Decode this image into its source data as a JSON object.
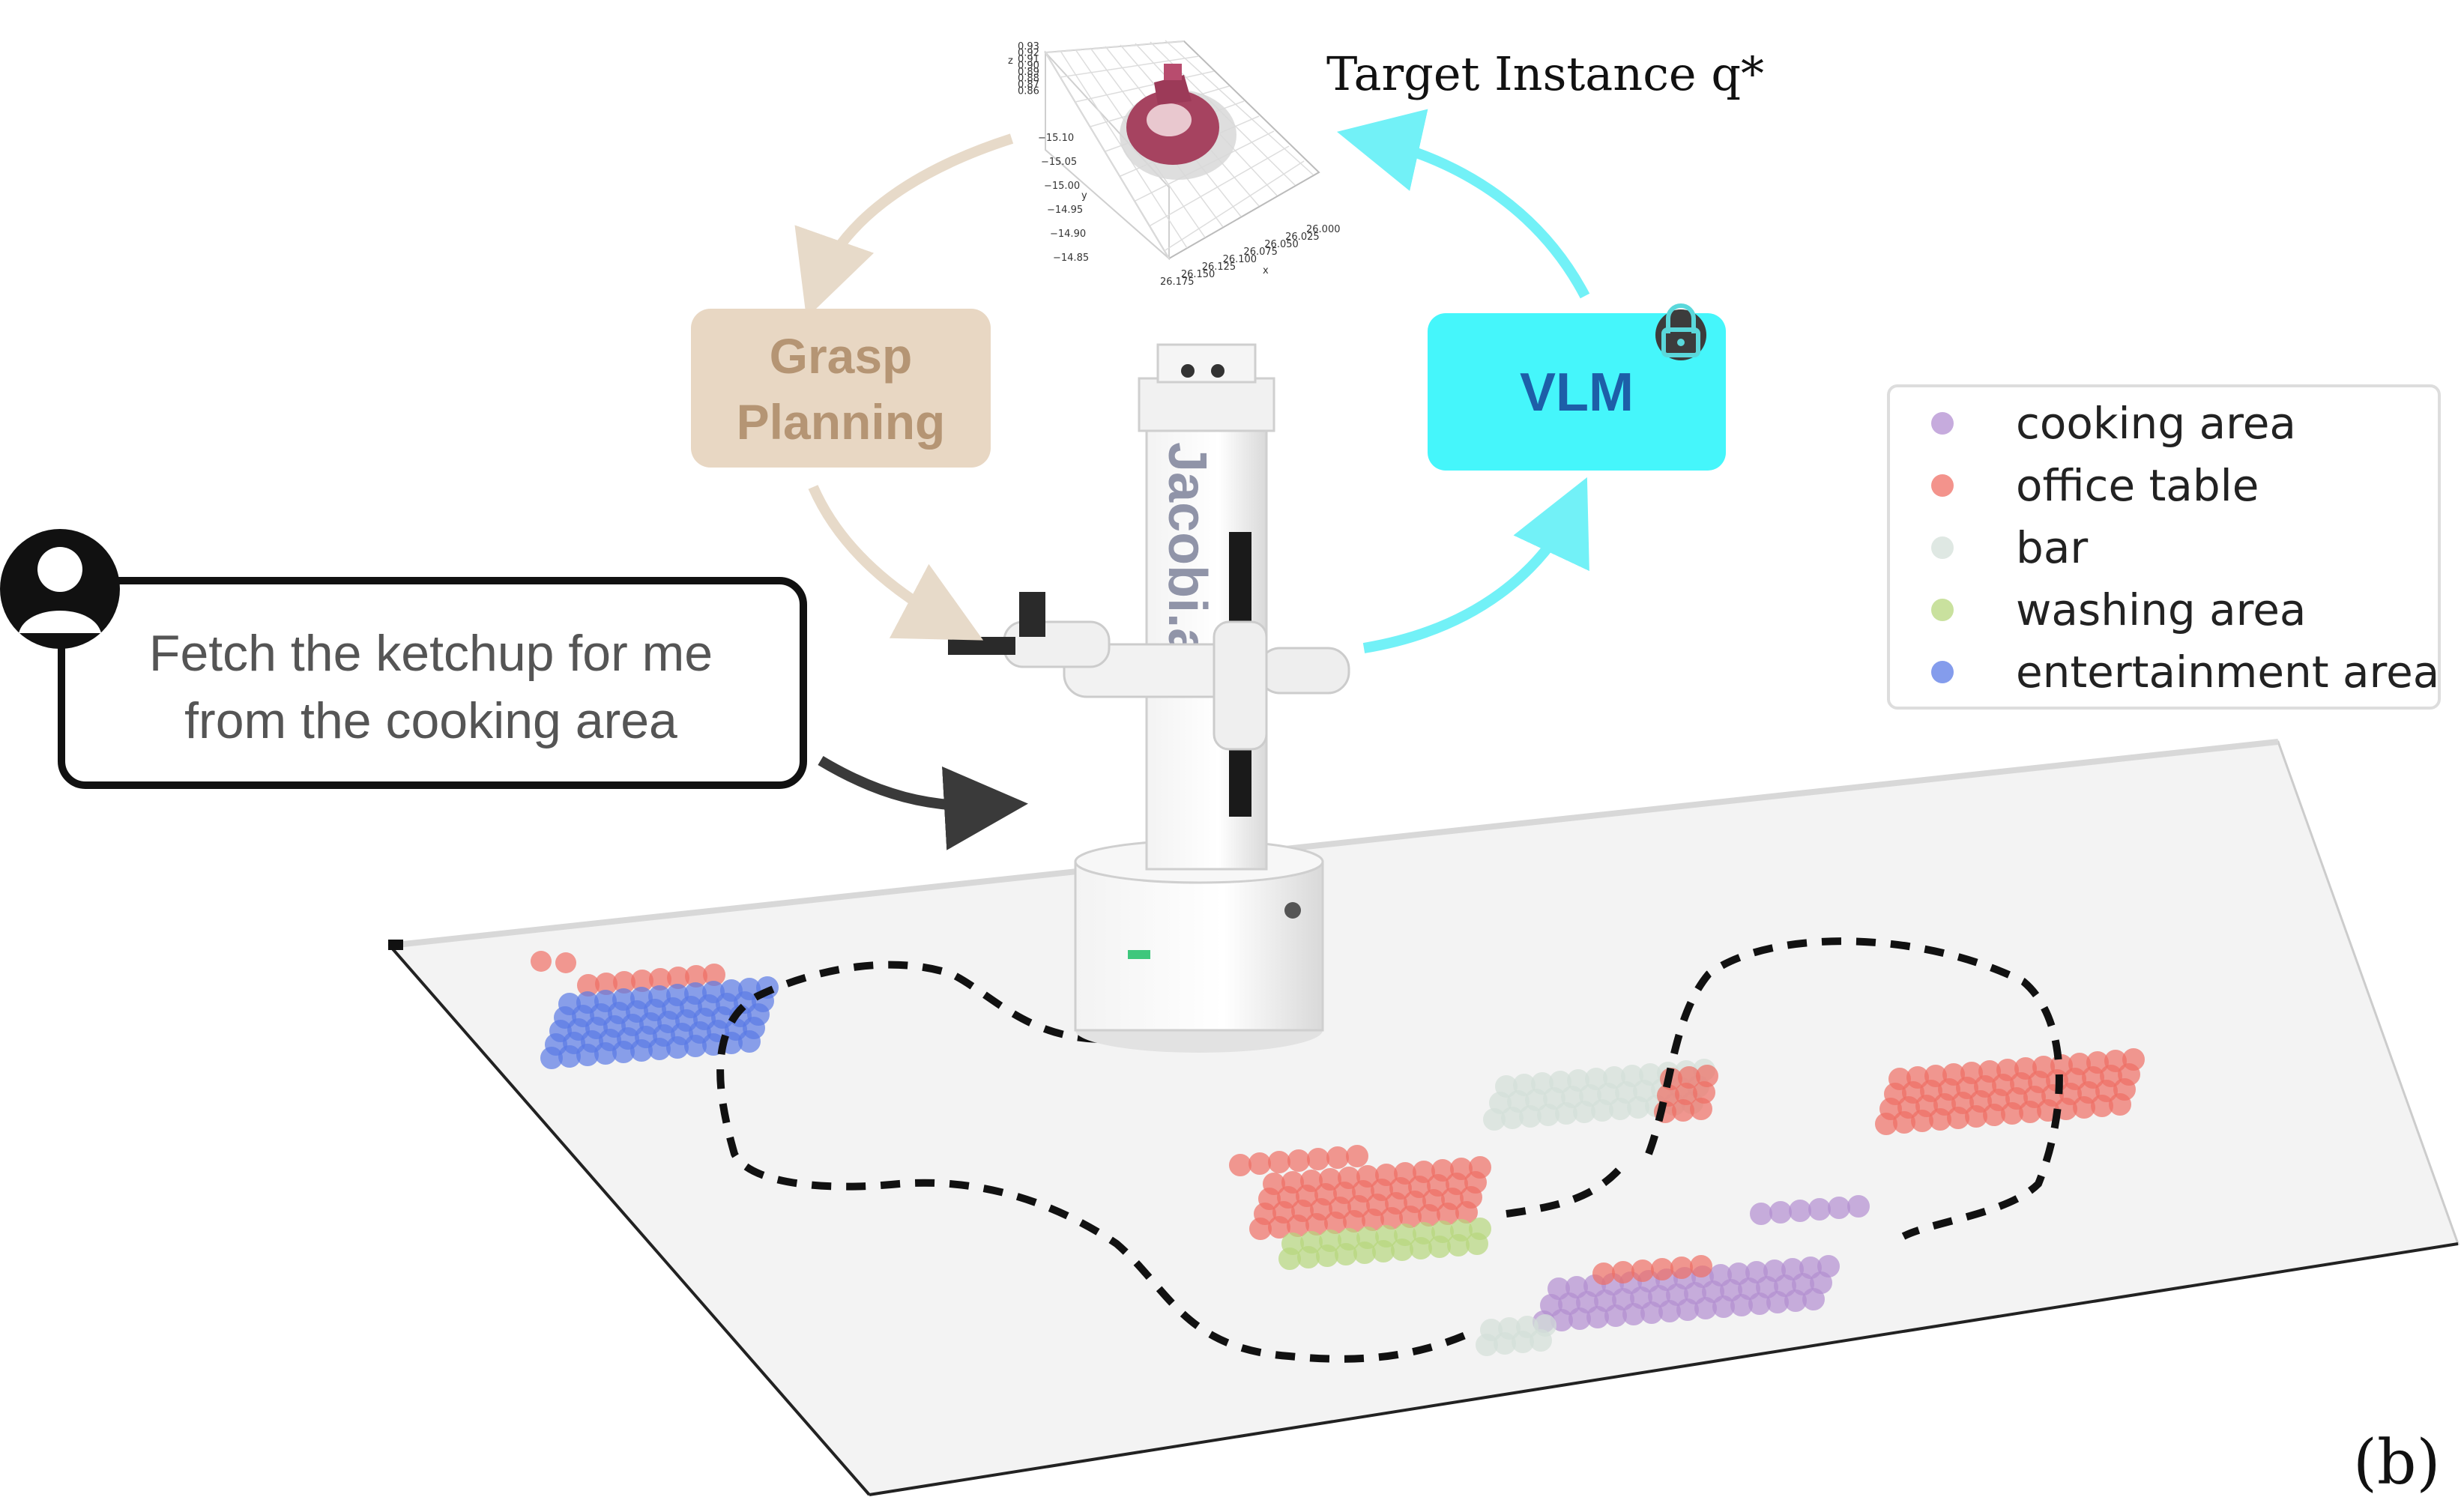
{
  "diagram": {
    "target_label": "Target Instance q*",
    "grasp_line1": "Grasp",
    "grasp_line2": "Planning",
    "vlm_label": "VLM",
    "instruction_line1": "Fetch the ketchup for me",
    "instruction_line2": "from the cooking area",
    "robot_brand": "Jacobi.ai",
    "panel_label": "(b)"
  },
  "plot3d": {
    "z_ticks": [
      "0.93",
      "0.92",
      "0.91",
      "0.90",
      "0.89",
      "0.88",
      "0.87",
      "0.86"
    ],
    "z_label": "z",
    "y_ticks": [
      "−15.10",
      "−15.05",
      "−15.00",
      "−14.95",
      "−14.90",
      "−14.85"
    ],
    "y_label": "y",
    "x_ticks": [
      "26.175",
      "26.150",
      "26.125",
      "26.100",
      "26.075",
      "26.050",
      "26.025",
      "26.000"
    ],
    "x_label": "x"
  },
  "legend": [
    {
      "label": "cooking area",
      "color": "#b38fd1"
    },
    {
      "label": "office table",
      "color": "#ef6f65"
    },
    {
      "label": "bar",
      "color": "#d4e0d9"
    },
    {
      "label": "washing area",
      "color": "#b7d77d"
    },
    {
      "label": "entertainment area",
      "color": "#5b7be6"
    }
  ],
  "colors": {
    "grasp_box": "#e8d7c3",
    "grasp_text": "#b59574",
    "vlm_box": "#45f6fb",
    "vlm_text": "#1d5fa8",
    "arrow_beige": "#e7dac9",
    "arrow_cyan": "#72f1f7",
    "arrow_dark": "#3a3a3a"
  }
}
